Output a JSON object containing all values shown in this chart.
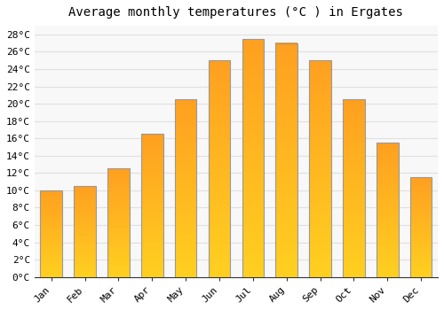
{
  "title": "Average monthly temperatures (°C ) in Ergates",
  "months": [
    "Jan",
    "Feb",
    "Mar",
    "Apr",
    "May",
    "Jun",
    "Jul",
    "Aug",
    "Sep",
    "Oct",
    "Nov",
    "Dec"
  ],
  "values": [
    10.0,
    10.5,
    12.5,
    16.5,
    20.5,
    25.0,
    27.5,
    27.0,
    25.0,
    20.5,
    15.5,
    11.5
  ],
  "bar_color_bottom": "#FFD020",
  "bar_color_top": "#FFA020",
  "ylim": [
    0,
    29
  ],
  "yticks": [
    0,
    2,
    4,
    6,
    8,
    10,
    12,
    14,
    16,
    18,
    20,
    22,
    24,
    26,
    28
  ],
  "ytick_labels": [
    "0°C",
    "2°C",
    "4°C",
    "6°C",
    "8°C",
    "10°C",
    "12°C",
    "14°C",
    "16°C",
    "18°C",
    "20°C",
    "22°C",
    "24°C",
    "26°C",
    "28°C"
  ],
  "bg_color": "#ffffff",
  "plot_bg_color": "#f8f8f8",
  "grid_color": "#e0e0e0",
  "title_fontsize": 10,
  "tick_fontsize": 8,
  "bar_edge_color": "#999999",
  "bar_width": 0.65
}
